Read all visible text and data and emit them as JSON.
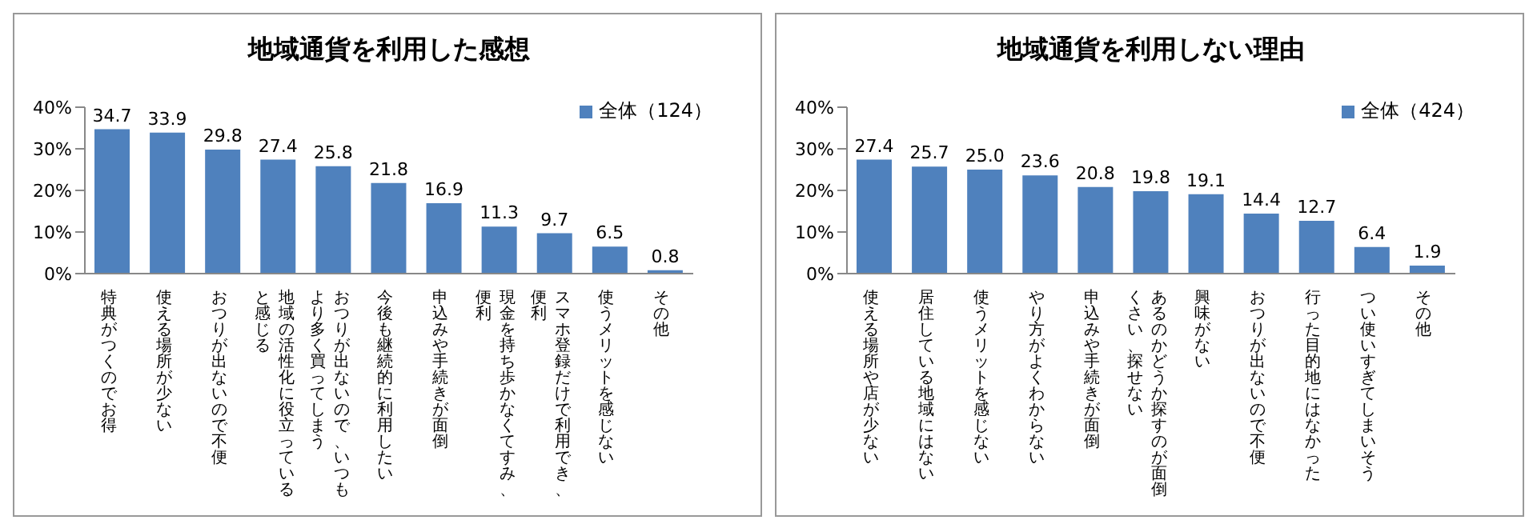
{
  "chart_data": [
    {
      "type": "bar",
      "title": "地域通貨を利用した感想",
      "categories": [
        "特典がつくのでお得",
        "使える場所が少ない",
        "おつりが出ないので不便",
        "地域の活性化に役立っていると感じる",
        "おつりが出ないので、いつもより多く買ってしまう",
        "今後も継続的に利用したい",
        "申込みや手続きが面倒",
        "現金を持ち歩かなくてすみ、便利",
        "スマホ登録だけで利用でき、便利",
        "使うメリットを感じない",
        "その他"
      ],
      "series": [
        {
          "name": "全体（124）",
          "color": "#4f81bd",
          "values": [
            34.7,
            33.9,
            29.8,
            27.4,
            25.8,
            21.8,
            16.9,
            11.3,
            9.7,
            6.5,
            0.8
          ],
          "value_labels": [
            "34.7",
            "33.9",
            "29.8",
            "27.4",
            "25.8",
            "21.8",
            "16.9",
            "11.3",
            "9.7",
            "6.5",
            "0.8"
          ]
        }
      ],
      "ylim": [
        0,
        40
      ],
      "yticks": [
        {
          "value": 0,
          "label": "0%"
        },
        {
          "value": 10,
          "label": "10%"
        },
        {
          "value": 20,
          "label": "20%"
        },
        {
          "value": 30,
          "label": "30%"
        },
        {
          "value": 40,
          "label": "40%"
        }
      ],
      "legend": "top right"
    },
    {
      "type": "bar",
      "title": "地域通貨を利用しない理由",
      "categories": [
        "使える場所や店が少ない",
        "居住している地域にはない",
        "使うメリットを感じない",
        "やり方がよくわからない",
        "申込みや手続きが面倒",
        "あるのかどうか探すのが面倒くさい、探せない",
        "興味がない",
        "おつりが出ないので不便",
        "行った目的地にはなかった",
        "つい使いすぎてしまいそう",
        "その他"
      ],
      "series": [
        {
          "name": "全体（424）",
          "color": "#4f81bd",
          "values": [
            27.4,
            25.7,
            25.0,
            23.6,
            20.8,
            19.8,
            19.1,
            14.4,
            12.7,
            6.4,
            1.9
          ],
          "value_labels": [
            "27.4",
            "25.7",
            "25.0",
            "23.6",
            "20.8",
            "19.8",
            "19.1",
            "14.4",
            "12.7",
            "6.4",
            "1.9"
          ]
        }
      ],
      "ylim": [
        0,
        40
      ],
      "yticks": [
        {
          "value": 0,
          "label": "0%"
        },
        {
          "value": 10,
          "label": "10%"
        },
        {
          "value": 20,
          "label": "20%"
        },
        {
          "value": 30,
          "label": "30%"
        },
        {
          "value": 40,
          "label": "40%"
        }
      ],
      "legend": "top right"
    }
  ]
}
